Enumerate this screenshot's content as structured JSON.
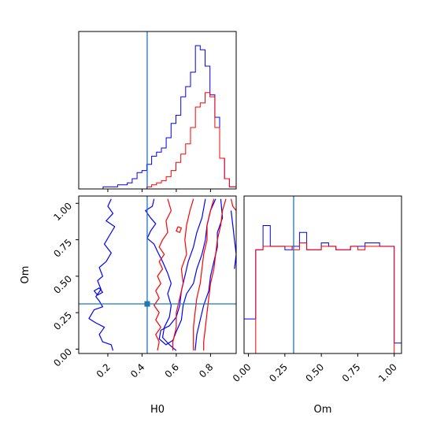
{
  "chart_data": {
    "type": "corner",
    "parameters": [
      {
        "key": "H0",
        "label": "H0",
        "range": [
          0.03,
          0.95
        ],
        "ticks": [
          0.2,
          0.4,
          0.6,
          0.8
        ],
        "tick_labels": [
          "0.2",
          "0.4",
          "0.6",
          "0.8"
        ],
        "truth": 0.43
      },
      {
        "key": "Om",
        "label": "Om",
        "range": [
          -0.03,
          1.05
        ],
        "ticks": [
          0.0,
          0.25,
          0.5,
          0.75,
          1.0
        ],
        "tick_labels": [
          "0.00",
          "0.25",
          "0.50",
          "0.75",
          "1.00"
        ],
        "truth": 0.31
      }
    ],
    "series": [
      {
        "color": "#0000ff"
      },
      {
        "color": "#ff0000"
      }
    ],
    "truth_color": "#1f77b4",
    "hist_H0": {
      "bin_edges": [
        0.03,
        0.0584,
        0.0868,
        0.1152,
        0.1436,
        0.172,
        0.2004,
        0.2288,
        0.2572,
        0.2856,
        0.314,
        0.3424,
        0.3708,
        0.3992,
        0.4276,
        0.456,
        0.4844,
        0.5128,
        0.5412,
        0.5696,
        0.598,
        0.6264,
        0.6548,
        0.6832,
        0.7116,
        0.74,
        0.7684,
        0.7968,
        0.8252,
        0.8536,
        0.882,
        0.9104,
        0.95
      ],
      "blue": [
        0,
        0,
        0,
        0,
        0,
        1,
        1,
        1,
        2,
        2,
        3,
        5,
        8,
        9,
        12,
        16,
        18,
        20,
        25,
        32,
        36,
        45,
        50,
        57,
        70,
        68,
        60,
        46,
        35,
        15,
        5,
        1
      ],
      "red": [
        0,
        0,
        0,
        0,
        0,
        0,
        0,
        0,
        0,
        0,
        0,
        0,
        0,
        0,
        1,
        2,
        3,
        4,
        6,
        9,
        13,
        17,
        22,
        30,
        40,
        42,
        47,
        45,
        30,
        15,
        5,
        1
      ]
    },
    "hist_Om": {
      "bin_edges": [
        -0.03,
        0.0,
        0.05,
        0.1,
        0.15,
        0.2,
        0.25,
        0.3,
        0.35,
        0.4,
        0.45,
        0.5,
        0.55,
        0.6,
        0.65,
        0.7,
        0.75,
        0.8,
        0.85,
        0.9,
        0.95,
        1.0,
        1.05
      ],
      "blue": [
        10,
        10,
        30,
        37,
        31,
        31,
        30,
        31,
        35,
        30,
        30,
        32,
        31,
        30,
        30,
        31,
        31,
        32,
        32,
        31,
        31,
        3
      ],
      "red": [
        0,
        0,
        30,
        31,
        31,
        31,
        31,
        30,
        32,
        30,
        30,
        31,
        31,
        30,
        30,
        31,
        30,
        31,
        31,
        31,
        31,
        0
      ]
    },
    "contours": {
      "blue": [
        [
          [
            0.23,
            -0.01
          ],
          [
            0.22,
            0.03
          ],
          [
            0.17,
            0.05
          ],
          [
            0.15,
            0.1
          ],
          [
            0.18,
            0.15
          ],
          [
            0.13,
            0.18
          ],
          [
            0.09,
            0.21
          ],
          [
            0.12,
            0.27
          ],
          [
            0.17,
            0.29
          ],
          [
            0.15,
            0.33
          ],
          [
            0.13,
            0.36
          ],
          [
            0.16,
            0.41
          ],
          [
            0.14,
            0.47
          ],
          [
            0.17,
            0.5
          ],
          [
            0.15,
            0.56
          ],
          [
            0.19,
            0.6
          ],
          [
            0.22,
            0.66
          ],
          [
            0.18,
            0.72
          ],
          [
            0.21,
            0.78
          ],
          [
            0.24,
            0.84
          ],
          [
            0.19,
            0.88
          ],
          [
            0.23,
            0.93
          ],
          [
            0.2,
            0.98
          ],
          [
            0.22,
            1.03
          ]
        ],
        [
          [
            0.47,
            1.03
          ],
          [
            0.46,
            0.98
          ],
          [
            0.42,
            0.95
          ],
          [
            0.45,
            0.9
          ],
          [
            0.48,
            0.86
          ],
          [
            0.45,
            0.81
          ],
          [
            0.43,
            0.76
          ],
          [
            0.47,
            0.72
          ],
          [
            0.49,
            0.67
          ],
          [
            0.52,
            0.6
          ],
          [
            0.55,
            0.52
          ],
          [
            0.57,
            0.45
          ],
          [
            0.55,
            0.38
          ],
          [
            0.57,
            0.3
          ],
          [
            0.56,
            0.22
          ],
          [
            0.53,
            0.15
          ],
          [
            0.52,
            0.08
          ],
          [
            0.56,
            0.03
          ],
          [
            0.6,
            -0.01
          ]
        ],
        [
          [
            0.83,
            1.03
          ],
          [
            0.8,
            0.95
          ],
          [
            0.78,
            0.85
          ],
          [
            0.77,
            0.75
          ],
          [
            0.75,
            0.65
          ],
          [
            0.72,
            0.55
          ],
          [
            0.7,
            0.45
          ],
          [
            0.66,
            0.38
          ],
          [
            0.64,
            0.3
          ],
          [
            0.63,
            0.2
          ],
          [
            0.6,
            0.12
          ],
          [
            0.58,
            0.06
          ],
          [
            0.54,
            0.03
          ],
          [
            0.5,
            0.07
          ],
          [
            0.51,
            0.13
          ],
          [
            0.56,
            0.16
          ],
          [
            0.6,
            0.22
          ],
          [
            0.62,
            0.3
          ],
          [
            0.63,
            0.4
          ],
          [
            0.65,
            0.5
          ],
          [
            0.67,
            0.6
          ],
          [
            0.7,
            0.7
          ],
          [
            0.72,
            0.8
          ],
          [
            0.75,
            0.9
          ],
          [
            0.77,
            1.03
          ]
        ],
        [
          [
            0.86,
            1.03
          ],
          [
            0.87,
            0.9
          ],
          [
            0.84,
            0.8
          ],
          [
            0.84,
            0.7
          ],
          [
            0.82,
            0.6
          ],
          [
            0.8,
            0.5
          ],
          [
            0.79,
            0.4
          ],
          [
            0.76,
            0.3
          ],
          [
            0.74,
            0.2
          ],
          [
            0.72,
            0.1
          ],
          [
            0.71,
            -0.01
          ]
        ],
        [
          [
            0.94,
            0.55
          ],
          [
            0.95,
            0.65
          ],
          [
            0.94,
            0.75
          ],
          [
            0.93,
            0.85
          ],
          [
            0.92,
            0.95
          ]
        ],
        [
          [
            0.15,
            0.42
          ],
          [
            0.12,
            0.4
          ],
          [
            0.14,
            0.37
          ],
          [
            0.17,
            0.39
          ],
          [
            0.15,
            0.42
          ]
        ]
      ],
      "red": [
        [
          [
            0.55,
            1.03
          ],
          [
            0.57,
            0.95
          ],
          [
            0.54,
            0.88
          ],
          [
            0.55,
            0.8
          ],
          [
            0.52,
            0.75
          ],
          [
            0.5,
            0.7
          ],
          [
            0.53,
            0.65
          ],
          [
            0.5,
            0.6
          ],
          [
            0.52,
            0.55
          ],
          [
            0.49,
            0.5
          ],
          [
            0.51,
            0.45
          ],
          [
            0.48,
            0.4
          ],
          [
            0.5,
            0.35
          ],
          [
            0.47,
            0.3
          ],
          [
            0.5,
            0.25
          ],
          [
            0.48,
            0.2
          ],
          [
            0.51,
            0.15
          ],
          [
            0.48,
            0.1
          ],
          [
            0.5,
            0.05
          ],
          [
            0.49,
            -0.01
          ]
        ],
        [
          [
            0.7,
            1.03
          ],
          [
            0.68,
            0.95
          ],
          [
            0.66,
            0.85
          ],
          [
            0.65,
            0.75
          ],
          [
            0.66,
            0.65
          ],
          [
            0.63,
            0.55
          ],
          [
            0.64,
            0.45
          ],
          [
            0.62,
            0.35
          ],
          [
            0.6,
            0.25
          ],
          [
            0.6,
            0.15
          ],
          [
            0.58,
            0.05
          ],
          [
            0.58,
            -0.01
          ]
        ],
        [
          [
            0.82,
            1.03
          ],
          [
            0.8,
            0.95
          ],
          [
            0.78,
            0.85
          ],
          [
            0.78,
            0.75
          ],
          [
            0.76,
            0.65
          ],
          [
            0.75,
            0.55
          ],
          [
            0.74,
            0.45
          ],
          [
            0.72,
            0.35
          ],
          [
            0.71,
            0.25
          ],
          [
            0.7,
            0.15
          ],
          [
            0.7,
            0.05
          ],
          [
            0.7,
            -0.01
          ]
        ],
        [
          [
            0.89,
            1.03
          ],
          [
            0.87,
            0.95
          ],
          [
            0.86,
            0.85
          ],
          [
            0.84,
            0.75
          ],
          [
            0.83,
            0.65
          ],
          [
            0.82,
            0.55
          ],
          [
            0.8,
            0.45
          ],
          [
            0.79,
            0.35
          ],
          [
            0.78,
            0.25
          ],
          [
            0.77,
            0.15
          ],
          [
            0.76,
            0.05
          ],
          [
            0.76,
            -0.01
          ]
        ],
        [
          [
            0.61,
            0.84
          ],
          [
            0.6,
            0.81
          ],
          [
            0.62,
            0.8
          ],
          [
            0.63,
            0.83
          ],
          [
            0.61,
            0.84
          ]
        ],
        [
          [
            0.92,
            1.03
          ],
          [
            0.93,
            0.98
          ],
          [
            0.95,
            0.95
          ]
        ]
      ]
    }
  }
}
